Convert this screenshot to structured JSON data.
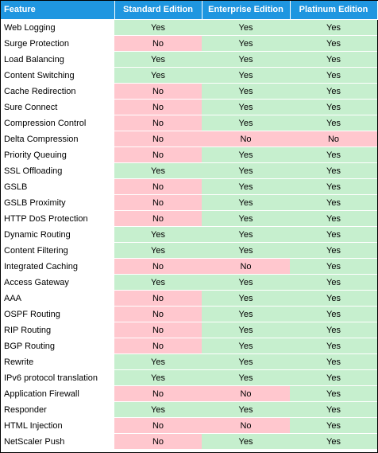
{
  "table": {
    "headers": [
      "Feature",
      "Standard Edition",
      "Enterprise Edition",
      "Platinum Edition"
    ],
    "colors": {
      "header_bg": "#1f96e0",
      "yes_bg": "#c6efce",
      "no_bg": "#ffc7ce"
    },
    "rows": [
      {
        "feature": "Web Logging",
        "standard": "Yes",
        "enterprise": "Yes",
        "platinum": "Yes"
      },
      {
        "feature": "Surge Protection",
        "standard": "No",
        "enterprise": "Yes",
        "platinum": "Yes"
      },
      {
        "feature": "Load Balancing",
        "standard": "Yes",
        "enterprise": "Yes",
        "platinum": "Yes"
      },
      {
        "feature": "Content Switching",
        "standard": "Yes",
        "enterprise": "Yes",
        "platinum": "Yes"
      },
      {
        "feature": "Cache Redirection",
        "standard": "No",
        "enterprise": "Yes",
        "platinum": "Yes"
      },
      {
        "feature": "Sure Connect",
        "standard": "No",
        "enterprise": "Yes",
        "platinum": "Yes"
      },
      {
        "feature": "Compression Control",
        "standard": "No",
        "enterprise": "Yes",
        "platinum": "Yes"
      },
      {
        "feature": "Delta Compression",
        "standard": "No",
        "enterprise": "No",
        "platinum": "No"
      },
      {
        "feature": "Priority Queuing",
        "standard": "No",
        "enterprise": "Yes",
        "platinum": "Yes"
      },
      {
        "feature": "SSL Offloading",
        "standard": "Yes",
        "enterprise": "Yes",
        "platinum": "Yes"
      },
      {
        "feature": "GSLB",
        "standard": "No",
        "enterprise": "Yes",
        "platinum": "Yes"
      },
      {
        "feature": "GSLB Proximity",
        "standard": "No",
        "enterprise": "Yes",
        "platinum": "Yes"
      },
      {
        "feature": "HTTP DoS Protection",
        "standard": "No",
        "enterprise": "Yes",
        "platinum": "Yes"
      },
      {
        "feature": "Dynamic Routing",
        "standard": "Yes",
        "enterprise": "Yes",
        "platinum": "Yes"
      },
      {
        "feature": "Content Filtering",
        "standard": "Yes",
        "enterprise": "Yes",
        "platinum": "Yes"
      },
      {
        "feature": "Integrated Caching",
        "standard": "No",
        "enterprise": "No",
        "platinum": "Yes"
      },
      {
        "feature": "Access Gateway",
        "standard": "Yes",
        "enterprise": "Yes",
        "platinum": "Yes"
      },
      {
        "feature": "AAA",
        "standard": "No",
        "enterprise": "Yes",
        "platinum": "Yes"
      },
      {
        "feature": "OSPF Routing",
        "standard": "No",
        "enterprise": "Yes",
        "platinum": "Yes"
      },
      {
        "feature": "RIP Routing",
        "standard": "No",
        "enterprise": "Yes",
        "platinum": "Yes"
      },
      {
        "feature": "BGP Routing",
        "standard": "No",
        "enterprise": "Yes",
        "platinum": "Yes"
      },
      {
        "feature": "Rewrite",
        "standard": "Yes",
        "enterprise": "Yes",
        "platinum": "Yes"
      },
      {
        "feature": "IPv6 protocol translation",
        "standard": "Yes",
        "enterprise": "Yes",
        "platinum": "Yes"
      },
      {
        "feature": "Application Firewall",
        "standard": "No",
        "enterprise": "No",
        "platinum": "Yes"
      },
      {
        "feature": "Responder",
        "standard": "Yes",
        "enterprise": "Yes",
        "platinum": "Yes"
      },
      {
        "feature": "HTML Injection",
        "standard": "No",
        "enterprise": "No",
        "platinum": "Yes"
      },
      {
        "feature": "NetScaler Push",
        "standard": "No",
        "enterprise": "Yes",
        "platinum": "Yes"
      }
    ]
  }
}
